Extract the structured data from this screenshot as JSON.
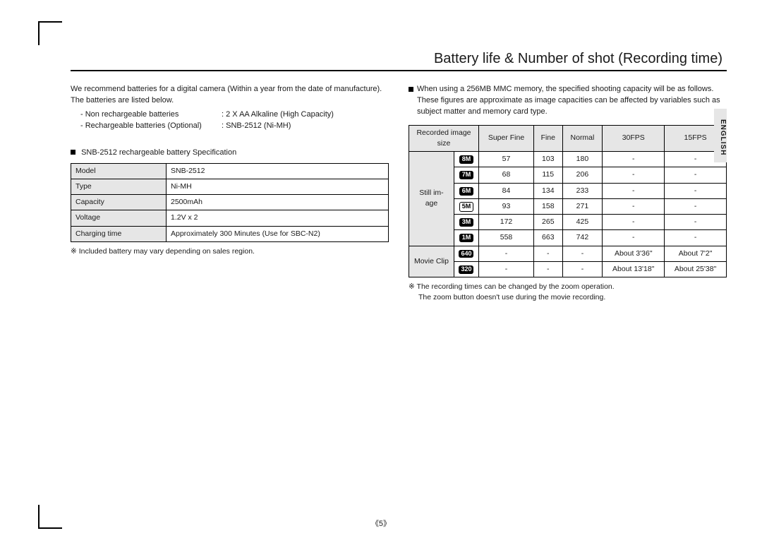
{
  "language_tab": "ENGLISH",
  "page_number": "《5》",
  "title": "Battery life & Number of shot (Recording time)",
  "left": {
    "intro": "We recommend batteries for a digital camera (Within a year from the date of manufacture). The batteries are listed below.",
    "bullet1_label": "- Non rechargeable batteries",
    "bullet1_value": ": 2 X AA Alkaline (High Capacity)",
    "bullet2_label": "- Rechargeable batteries (Optional)",
    "bullet2_value": ": SNB-2512 (Ni-MH)",
    "spec_heading": "SNB-2512 rechargeable battery Specification",
    "spec_rows": [
      {
        "k": "Model",
        "v": "SNB-2512"
      },
      {
        "k": "Type",
        "v": "Ni-MH"
      },
      {
        "k": "Capacity",
        "v": "2500mAh"
      },
      {
        "k": "Voltage",
        "v": "1.2V x 2"
      },
      {
        "k": "Charging time",
        "v": "Approximately 300 Minutes (Use for SBC-N2)"
      }
    ],
    "spec_note": "※ Included battery may vary depending on sales region."
  },
  "right": {
    "intro": "When using a 256MB MMC memory, the specified shooting capacity will be as follows. These figures are approximate as image capacities can be affected by variables such as subject matter and memory card type.",
    "headers": [
      "Recorded image size",
      "Super Fine",
      "Fine",
      "Normal",
      "30FPS",
      "15FPS"
    ],
    "still_label": "Still im-\nage",
    "movie_label": "Movie Clip",
    "still_rows": [
      {
        "badge": "8M",
        "white": false,
        "sf": "57",
        "f": "103",
        "n": "180",
        "a": "-",
        "b": "-"
      },
      {
        "badge": "7M",
        "white": false,
        "sf": "68",
        "f": "115",
        "n": "206",
        "a": "-",
        "b": "-"
      },
      {
        "badge": "6M",
        "white": false,
        "sf": "84",
        "f": "134",
        "n": "233",
        "a": "-",
        "b": "-"
      },
      {
        "badge": "5M",
        "white": true,
        "sf": "93",
        "f": "158",
        "n": "271",
        "a": "-",
        "b": "-"
      },
      {
        "badge": "3M",
        "white": false,
        "sf": "172",
        "f": "265",
        "n": "425",
        "a": "-",
        "b": "-"
      },
      {
        "badge": "1M",
        "white": false,
        "sf": "558",
        "f": "663",
        "n": "742",
        "a": "-",
        "b": "-"
      }
    ],
    "movie_rows": [
      {
        "badge": "640",
        "white": false,
        "sf": "-",
        "f": "-",
        "n": "-",
        "a": "About 3'36\"",
        "b": "About 7'2\""
      },
      {
        "badge": "320",
        "white": false,
        "sf": "-",
        "f": "-",
        "n": "-",
        "a": "About 13'18\"",
        "b": "About 25'38\""
      }
    ],
    "note1": "※ The recording times can be changed by the zoom operation.",
    "note2": "The zoom button doesn't use during the movie recording."
  }
}
